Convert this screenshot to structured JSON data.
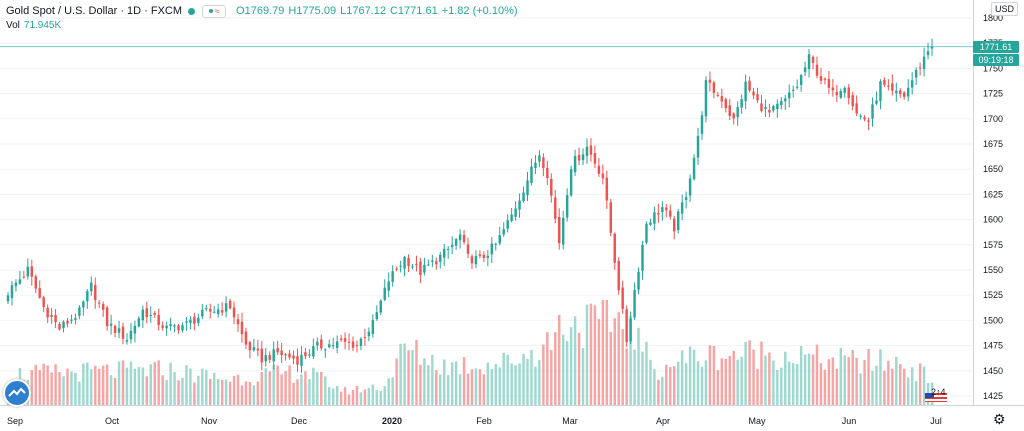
{
  "header": {
    "title": "Gold Spot / U.S. Dollar · 1D · FXCM",
    "open_label": "O1769.79",
    "high_label": "H1775.09",
    "low_label": "L1767.12",
    "close_label": "C1771.61",
    "change_label": "+1.82 (+0.10%)",
    "volume_label": "Vol",
    "volume_value": "71.945K",
    "currency": "USD"
  },
  "price_label": "1771.61",
  "countdown_label": "09:19:18",
  "flag_count": "2↑4",
  "colors": {
    "up": "#26a69a",
    "down": "#ef5350",
    "vol_up": "#9fd8cf",
    "vol_down": "#f5a5a3",
    "price_line": "#26a69a"
  },
  "icons": [
    "gear-icon",
    "tradingview-logo-icon",
    "us-flag-icon"
  ],
  "chart_data": {
    "type": "candlestick",
    "title": "Gold Spot / U.S. Dollar · 1D · FXCM",
    "ylim": [
      1415,
      1810
    ],
    "y_ticks": [
      1800,
      1775,
      1750,
      1725,
      1700,
      1675,
      1650,
      1625,
      1600,
      1575,
      1550,
      1525,
      1500,
      1475,
      1450,
      1425
    ],
    "x_tick_labels": [
      "Sep",
      "Oct",
      "Nov",
      "Dec",
      "2020",
      "Feb",
      "Mar",
      "Apr",
      "May",
      "Jun",
      "Jul"
    ],
    "last_price": 1771.61,
    "close_anchors": [
      [
        0,
        1528
      ],
      [
        5,
        1550
      ],
      [
        9,
        1513
      ],
      [
        13,
        1492
      ],
      [
        18,
        1508
      ],
      [
        21,
        1534
      ],
      [
        25,
        1497
      ],
      [
        30,
        1482
      ],
      [
        34,
        1510
      ],
      [
        40,
        1492
      ],
      [
        45,
        1496
      ],
      [
        50,
        1508
      ],
      [
        56,
        1514
      ],
      [
        60,
        1476
      ],
      [
        64,
        1462
      ],
      [
        68,
        1468
      ],
      [
        73,
        1461
      ],
      [
        78,
        1474
      ],
      [
        84,
        1478
      ],
      [
        88,
        1476
      ],
      [
        92,
        1496
      ],
      [
        96,
        1540
      ],
      [
        100,
        1562
      ],
      [
        104,
        1548
      ],
      [
        108,
        1560
      ],
      [
        111,
        1570
      ],
      [
        114,
        1584
      ],
      [
        116,
        1562
      ],
      [
        119,
        1560
      ],
      [
        123,
        1575
      ],
      [
        127,
        1604
      ],
      [
        131,
        1640
      ],
      [
        134,
        1666
      ],
      [
        136,
        1646
      ],
      [
        139,
        1578
      ],
      [
        142,
        1654
      ],
      [
        146,
        1672
      ],
      [
        150,
        1642
      ],
      [
        153,
        1560
      ],
      [
        156,
        1480
      ],
      [
        158,
        1530
      ],
      [
        161,
        1597
      ],
      [
        165,
        1612
      ],
      [
        168,
        1592
      ],
      [
        171,
        1626
      ],
      [
        174,
        1680
      ],
      [
        176,
        1735
      ],
      [
        180,
        1720
      ],
      [
        183,
        1698
      ],
      [
        186,
        1734
      ],
      [
        189,
        1716
      ],
      [
        192,
        1705
      ],
      [
        196,
        1718
      ],
      [
        199,
        1733
      ],
      [
        202,
        1760
      ],
      [
        205,
        1740
      ],
      [
        208,
        1724
      ],
      [
        211,
        1735
      ],
      [
        214,
        1705
      ],
      [
        217,
        1698
      ],
      [
        220,
        1734
      ],
      [
        223,
        1725
      ],
      [
        226,
        1723
      ],
      [
        229,
        1746
      ],
      [
        232,
        1768
      ],
      [
        233,
        1771.61
      ]
    ],
    "volume_note": "daily volume bars along bottom, colored by candle direction",
    "volume_anchors": [
      [
        0,
        0.35
      ],
      [
        20,
        0.38
      ],
      [
        40,
        0.4
      ],
      [
        55,
        0.3
      ],
      [
        75,
        0.38
      ],
      [
        85,
        0.16
      ],
      [
        95,
        0.22
      ],
      [
        100,
        0.65
      ],
      [
        110,
        0.45
      ],
      [
        125,
        0.48
      ],
      [
        135,
        0.65
      ],
      [
        140,
        0.95
      ],
      [
        147,
        0.92
      ],
      [
        154,
        1.0
      ],
      [
        158,
        0.8
      ],
      [
        163,
        0.4
      ],
      [
        172,
        0.55
      ],
      [
        190,
        0.6
      ],
      [
        210,
        0.5
      ],
      [
        225,
        0.48
      ],
      [
        233,
        0.3
      ]
    ]
  }
}
